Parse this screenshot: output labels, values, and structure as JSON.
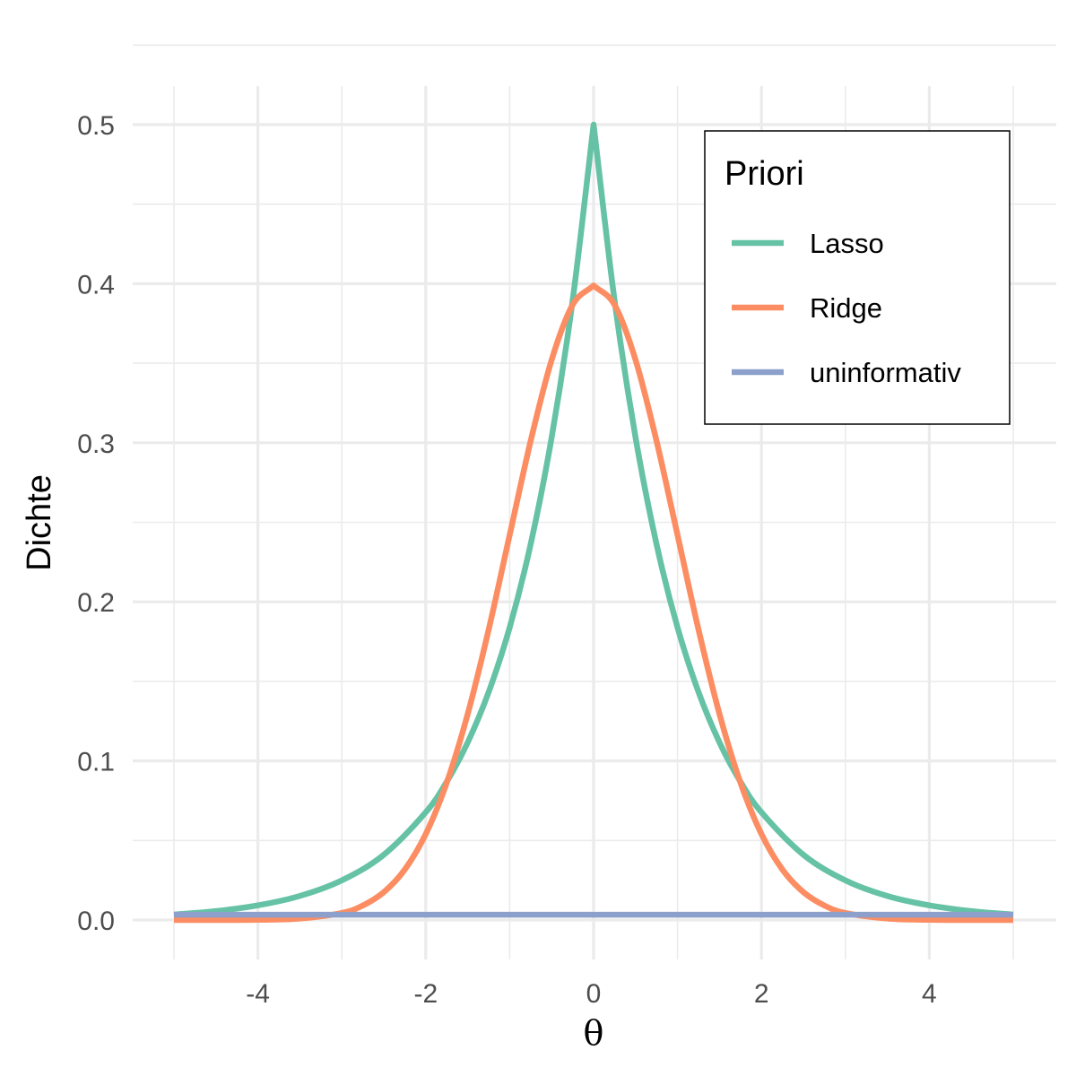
{
  "chart_data": {
    "type": "line",
    "xlabel": "θ",
    "ylabel": "Dichte",
    "xlim": [
      -5,
      5
    ],
    "ylim": [
      0,
      0.5
    ],
    "x_ticks": [
      -4,
      -2,
      0,
      2,
      4
    ],
    "x_tick_labels": [
      "-4",
      "-2",
      "0",
      "2",
      "4"
    ],
    "y_ticks": [
      0,
      0.1,
      0.2,
      0.3,
      0.4,
      0.5
    ],
    "y_tick_labels": [
      "0.0",
      "0.1",
      "0.2",
      "0.3",
      "0.4",
      "0.5"
    ],
    "grid": true,
    "legend": {
      "title": "Priori",
      "position": "top-right"
    },
    "series": [
      {
        "name": "Lasso",
        "color": "#66c2a5",
        "x": [
          -5,
          -4.5,
          -4,
          -3.5,
          -3,
          -2.5,
          -2,
          -1.75,
          -1.5,
          -1.25,
          -1,
          -0.75,
          -0.5,
          -0.25,
          0,
          0.25,
          0.5,
          0.75,
          1,
          1.25,
          1.5,
          1.75,
          2,
          2.5,
          3,
          3.5,
          4,
          4.5,
          5
        ],
        "values": [
          0.0034,
          0.0056,
          0.0092,
          0.0151,
          0.0249,
          0.041,
          0.0677,
          0.0869,
          0.1116,
          0.1433,
          0.1839,
          0.2362,
          0.3033,
          0.3894,
          0.5,
          0.3894,
          0.3033,
          0.2362,
          0.1839,
          0.1433,
          0.1116,
          0.0869,
          0.0677,
          0.041,
          0.0249,
          0.0151,
          0.0092,
          0.0056,
          0.0034
        ]
      },
      {
        "name": "Ridge",
        "color": "#fc8d62",
        "x": [
          -5,
          -4.5,
          -4,
          -3.5,
          -3,
          -2.75,
          -2.5,
          -2.25,
          -2,
          -1.75,
          -1.5,
          -1.25,
          -1,
          -0.75,
          -0.5,
          -0.25,
          0,
          0.25,
          0.5,
          0.75,
          1,
          1.25,
          1.5,
          1.75,
          2,
          2.25,
          2.5,
          2.75,
          3,
          3.5,
          4,
          4.5,
          5
        ],
        "values": [
          0.0,
          0.0,
          0.0001,
          0.0009,
          0.0044,
          0.0091,
          0.0175,
          0.0317,
          0.054,
          0.0863,
          0.1295,
          0.1826,
          0.242,
          0.3011,
          0.3521,
          0.3867,
          0.3989,
          0.3867,
          0.3521,
          0.3011,
          0.242,
          0.1826,
          0.1295,
          0.0863,
          0.054,
          0.0317,
          0.0175,
          0.0091,
          0.0044,
          0.0009,
          0.0001,
          0.0,
          0.0
        ]
      },
      {
        "name": "uninformativ",
        "color": "#8da0cb",
        "x": [
          -5,
          5
        ],
        "values": [
          0.0033,
          0.0033
        ]
      }
    ]
  }
}
